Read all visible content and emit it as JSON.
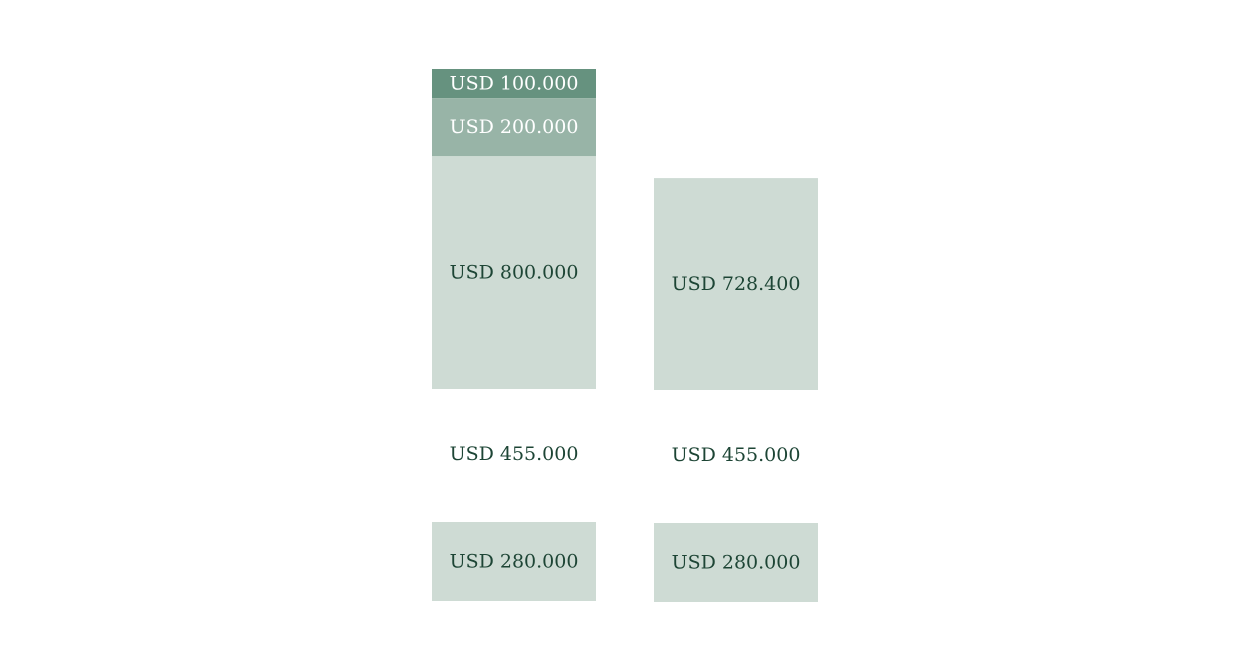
{
  "chart_data": {
    "type": "bar",
    "columns": [
      {
        "segments": [
          {
            "label": "USD 100.000",
            "value": 100000,
            "group": "top",
            "color": "#66927f",
            "text_color": "#ffffff"
          },
          {
            "label": "USD 200.000",
            "value": 200000,
            "group": "top",
            "color": "#98b4a7",
            "text_color": "#ffffff"
          },
          {
            "label": "USD 800.000",
            "value": 800000,
            "group": "top",
            "color": "#cedbd4",
            "text_color": "#1d4535"
          },
          {
            "label": "USD 455.000",
            "value": 455000,
            "group": "middle",
            "color": "#ffffff",
            "text_color": "#1d4535"
          },
          {
            "label": "USD 280.000",
            "value": 280000,
            "group": "bottom",
            "color": "#cedbd4",
            "text_color": "#1d4535"
          }
        ]
      },
      {
        "segments": [
          {
            "label": "USD 728.400",
            "value": 728400,
            "group": "top",
            "color": "#cedbd4",
            "text_color": "#1d4535"
          },
          {
            "label": "USD 455.000",
            "value": 455000,
            "group": "middle",
            "color": "#ffffff",
            "text_color": "#1d4535"
          },
          {
            "label": "USD 280.000",
            "value": 280000,
            "group": "bottom",
            "color": "#cedbd4",
            "text_color": "#1d4535"
          }
        ]
      }
    ]
  }
}
